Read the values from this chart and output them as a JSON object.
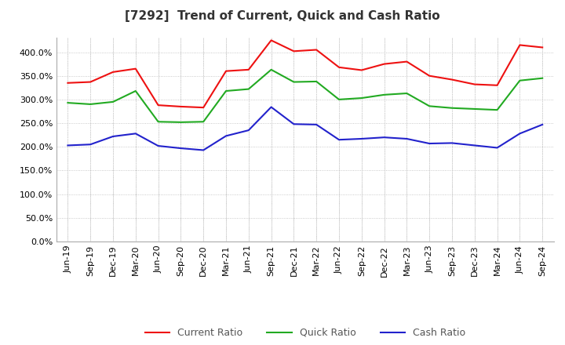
{
  "title": "[7292]  Trend of Current, Quick and Cash Ratio",
  "labels": [
    "Jun-19",
    "Sep-19",
    "Dec-19",
    "Mar-20",
    "Jun-20",
    "Sep-20",
    "Dec-20",
    "Mar-21",
    "Jun-21",
    "Sep-21",
    "Dec-21",
    "Mar-22",
    "Jun-22",
    "Sep-22",
    "Dec-22",
    "Mar-23",
    "Jun-23",
    "Sep-23",
    "Dec-23",
    "Mar-24",
    "Jun-24",
    "Sep-24"
  ],
  "current_ratio": [
    335,
    337,
    358,
    365,
    288,
    285,
    283,
    360,
    363,
    425,
    402,
    405,
    368,
    362,
    375,
    380,
    350,
    342,
    332,
    330,
    415,
    410
  ],
  "quick_ratio": [
    293,
    290,
    295,
    318,
    253,
    252,
    253,
    318,
    322,
    363,
    337,
    338,
    300,
    303,
    310,
    313,
    286,
    282,
    280,
    278,
    340,
    345
  ],
  "cash_ratio": [
    203,
    205,
    222,
    228,
    202,
    197,
    193,
    223,
    235,
    284,
    248,
    247,
    215,
    217,
    220,
    217,
    207,
    208,
    203,
    198,
    228,
    247
  ],
  "ylim": [
    0,
    430
  ],
  "yticks": [
    0,
    50,
    100,
    150,
    200,
    250,
    300,
    350,
    400
  ],
  "current_color": "#EE1111",
  "quick_color": "#22AA22",
  "cash_color": "#2222CC",
  "bg_color": "#FFFFFF",
  "plot_bg_color": "#FFFFFF",
  "grid_color": "#BBBBBB",
  "line_width": 1.5,
  "title_fontsize": 11,
  "legend_fontsize": 9,
  "tick_fontsize": 8
}
